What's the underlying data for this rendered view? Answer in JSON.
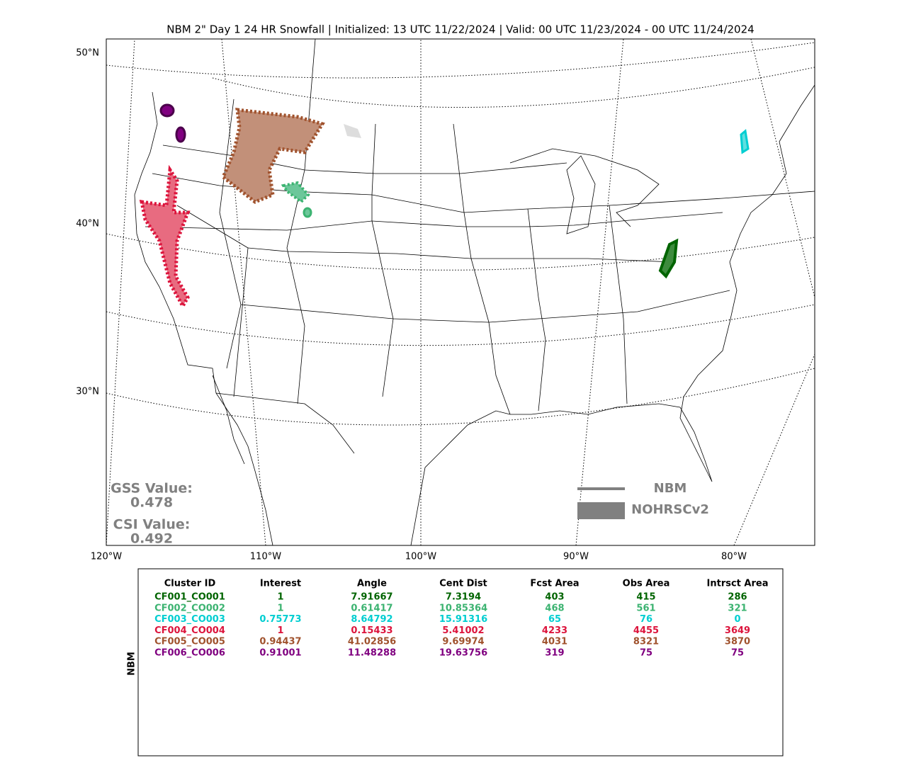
{
  "title": "NBM 2\" Day 1 24 HR Snowfall | Initialized: 13 UTC 11/22/2024 | Valid: 00 UTC 11/23/2024 - 00 UTC 11/24/2024",
  "map": {
    "lat_labels": [
      "50°N",
      "40°N",
      "30°N"
    ],
    "lon_labels": [
      "120°W",
      "110°W",
      "100°W",
      "90°W",
      "80°W"
    ],
    "scores": {
      "gss_label": "GSS Value:",
      "gss": "0.478",
      "csi_label": "CSI Value:",
      "csi": "0.492"
    },
    "legend": {
      "forecast": "NBM",
      "observed": "NOHRSCv2"
    }
  },
  "table": {
    "side_label": "NBM",
    "header": [
      "Cluster ID",
      "Interest",
      "Angle",
      "Cent Dist",
      "Fcst Area",
      "Obs Area",
      "Intrsct Area"
    ],
    "row_colors": [
      "#006400",
      "#3cb371",
      "#00ced1",
      "#dc143c",
      "#a0522d",
      "#800080"
    ],
    "rows": [
      [
        "CF001_CO001",
        "1",
        "7.91667",
        "7.3194",
        "403",
        "415",
        "286"
      ],
      [
        "CF002_CO002",
        "1",
        "0.61417",
        "10.85364",
        "468",
        "561",
        "321"
      ],
      [
        "CF003_CO003",
        "0.75773",
        "8.64792",
        "15.91316",
        "65",
        "76",
        "0"
      ],
      [
        "CF004_CO004",
        "1",
        "0.15433",
        "5.41002",
        "4233",
        "4455",
        "3649"
      ],
      [
        "CF005_CO005",
        "0.94437",
        "41.02856",
        "9.69974",
        "4031",
        "8321",
        "3870"
      ],
      [
        "CF006_CO006",
        "0.91001",
        "11.48288",
        "19.63756",
        "319",
        "75",
        "75"
      ]
    ]
  }
}
